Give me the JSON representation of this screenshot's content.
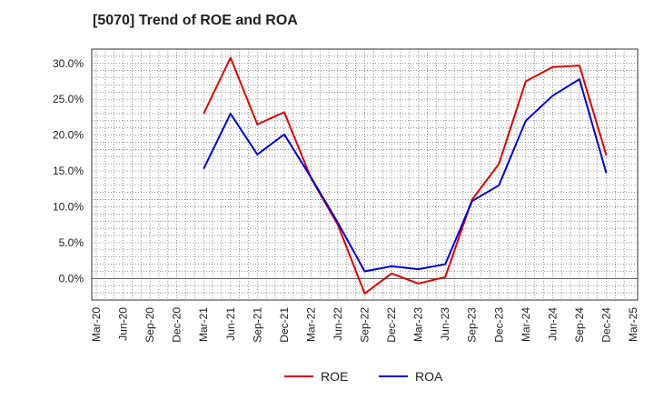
{
  "chart_data": {
    "type": "line",
    "title": "[5070]  Trend of ROE and ROA",
    "xlabel": "",
    "ylabel": "",
    "x_ticks": [
      "Mar-20",
      "Jun-20",
      "Sep-20",
      "Dec-20",
      "Mar-21",
      "Jun-21",
      "Sep-21",
      "Dec-21",
      "Mar-22",
      "Jun-22",
      "Sep-22",
      "Dec-22",
      "Mar-23",
      "Jun-23",
      "Sep-23",
      "Dec-23",
      "Mar-24",
      "Jun-24",
      "Sep-24",
      "Dec-24",
      "Mar-25"
    ],
    "y_ticks": [
      "30.0%",
      "25.0%",
      "20.0%",
      "15.0%",
      "10.0%",
      "5.0%",
      "0.0%"
    ],
    "ylim": [
      -3,
      32
    ],
    "grid": true,
    "legend_position": "bottom",
    "series": [
      {
        "name": "ROE",
        "color": "#e00000",
        "x": [
          "Mar-21",
          "Jun-21",
          "Sep-21",
          "Dec-21",
          "Mar-22",
          "Jun-22",
          "Sep-22",
          "Dec-22",
          "Mar-23",
          "Jun-23",
          "Sep-23",
          "Dec-23",
          "Mar-24",
          "Jun-24",
          "Sep-24",
          "Dec-24"
        ],
        "values": [
          23.0,
          30.8,
          21.5,
          23.2,
          14.0,
          7.5,
          -2.1,
          0.7,
          -0.7,
          0.2,
          11.0,
          16.0,
          27.5,
          29.5,
          29.7,
          17.2
        ]
      },
      {
        "name": "ROA",
        "color": "#0000e0",
        "x": [
          "Mar-21",
          "Jun-21",
          "Sep-21",
          "Dec-21",
          "Mar-22",
          "Jun-22",
          "Sep-22",
          "Dec-22",
          "Mar-23",
          "Jun-23",
          "Sep-23",
          "Dec-23",
          "Mar-24",
          "Jun-24",
          "Sep-24",
          "Dec-24"
        ],
        "values": [
          15.3,
          23.0,
          17.3,
          20.1,
          14.1,
          7.8,
          1.0,
          1.7,
          1.3,
          2.0,
          10.8,
          13.0,
          22.0,
          25.5,
          27.8,
          14.7
        ]
      }
    ]
  }
}
